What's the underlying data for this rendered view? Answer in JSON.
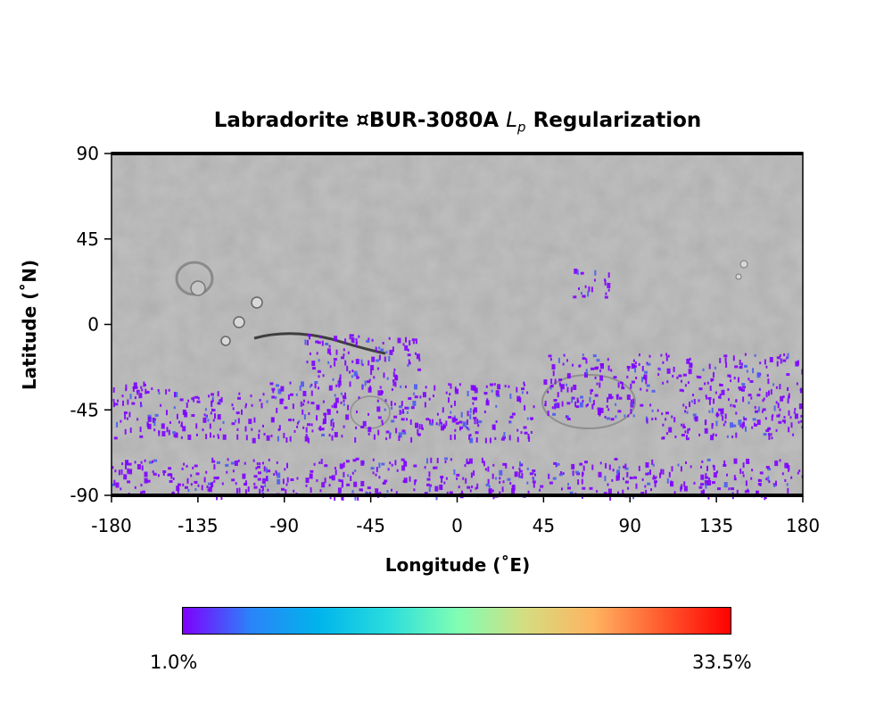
{
  "title": {
    "prefix": "Labradorite ¤BUR-3080A ",
    "lp_main": "L",
    "lp_sub": "p",
    "suffix": " Regularization"
  },
  "axes": {
    "xlabel": "Longitude (˚E)",
    "ylabel": "Latitude (˚N)",
    "xticks": [
      "-180",
      "-135",
      "-90",
      "-45",
      "0",
      "45",
      "90",
      "135",
      "180"
    ],
    "yticks": [
      "90",
      "45",
      "0",
      "-45",
      "-90"
    ],
    "xlim": [
      -180,
      180
    ],
    "ylim": [
      -90,
      90
    ]
  },
  "colorbar": {
    "min_label": "1.0%",
    "max_label": "33.5%",
    "colormap": "rainbow",
    "colors": [
      "#7f00ff",
      "#2a84f8",
      "#00b5eb",
      "#2adddd",
      "#7ffeb4",
      "#d4dd80",
      "#ffb360",
      "#ff5a2e",
      "#ff0000"
    ]
  },
  "basemap_color": "#a9a9a9",
  "chart_data": {
    "type": "heatmap",
    "title": "Labradorite ¤BUR-3080A Lp Regularization",
    "xlabel": "Longitude (˚E)",
    "ylabel": "Latitude (˚N)",
    "xlim": [
      -180,
      180
    ],
    "ylim": [
      -90,
      90
    ],
    "value_range": [
      1.0,
      33.5
    ],
    "value_unit": "%",
    "detections": [
      {
        "lon_range": [
          -180,
          -150
        ],
        "lat_range": [
          -60,
          -30
        ],
        "value": 2
      },
      {
        "lon_range": [
          -150,
          -100
        ],
        "lat_range": [
          -60,
          -35
        ],
        "value": 2
      },
      {
        "lon_range": [
          -100,
          -80
        ],
        "lat_range": [
          -60,
          -30
        ],
        "value": 2
      },
      {
        "lon_range": [
          -80,
          -20
        ],
        "lat_range": [
          -60,
          -5
        ],
        "value": 3
      },
      {
        "lon_range": [
          -20,
          0
        ],
        "lat_range": [
          -60,
          -30
        ],
        "value": 2
      },
      {
        "lon_range": [
          0,
          40
        ],
        "lat_range": [
          -60,
          -30
        ],
        "value": 2
      },
      {
        "lon_range": [
          45,
          105
        ],
        "lat_range": [
          -50,
          -15
        ],
        "value": 3
      },
      {
        "lon_range": [
          105,
          180
        ],
        "lat_range": [
          -60,
          -15
        ],
        "value": 2
      },
      {
        "lon_range": [
          60,
          80
        ],
        "lat_range": [
          15,
          30
        ],
        "value": 2
      },
      {
        "lon_range": [
          -180,
          180
        ],
        "lat_range": [
          -90,
          -70
        ],
        "value": 1.5
      }
    ]
  }
}
